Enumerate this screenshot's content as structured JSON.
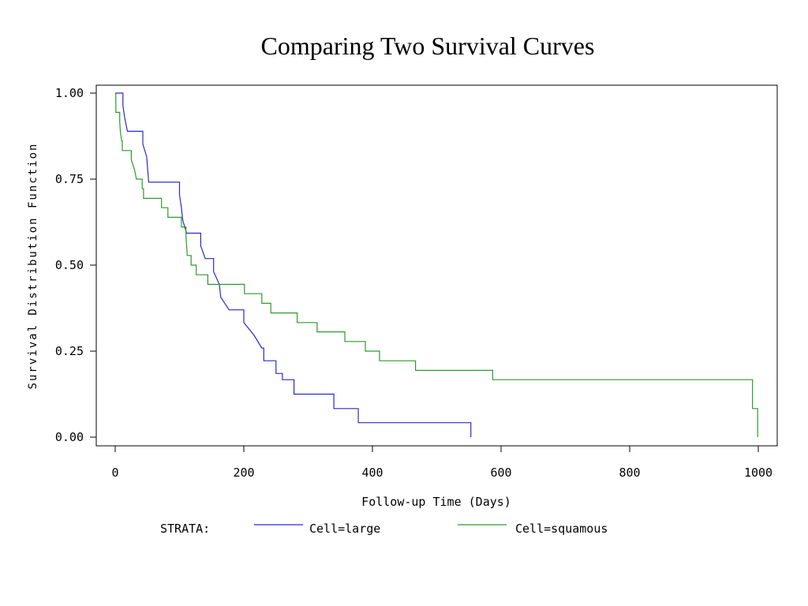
{
  "chart_data": {
    "type": "line",
    "title": "Comparing Two Survival Curves",
    "xlabel": "Follow-up Time (Days)",
    "ylabel": "Survival Distribution Function",
    "xlim": [
      0,
      1000
    ],
    "ylim": [
      0,
      1
    ],
    "x_ticks": [
      "0",
      "200",
      "400",
      "600",
      "800",
      "1000"
    ],
    "y_ticks": [
      "0.00",
      "0.25",
      "0.50",
      "0.75",
      "1.00"
    ],
    "step": true,
    "legend_title": "STRATA:",
    "series": [
      {
        "name": "Cell=large",
        "color": "#2a2ad0",
        "points": [
          [
            0,
            1.0
          ],
          [
            12,
            1.0
          ],
          [
            12,
            0.963
          ],
          [
            15,
            0.926
          ],
          [
            19,
            0.889
          ],
          [
            43,
            0.889
          ],
          [
            43,
            0.852
          ],
          [
            49,
            0.815
          ],
          [
            52,
            0.741
          ],
          [
            100,
            0.741
          ],
          [
            100,
            0.704
          ],
          [
            103,
            0.667
          ],
          [
            105,
            0.63
          ],
          [
            111,
            0.593
          ],
          [
            133,
            0.593
          ],
          [
            133,
            0.556
          ],
          [
            140,
            0.519
          ],
          [
            153,
            0.519
          ],
          [
            153,
            0.481
          ],
          [
            162,
            0.444
          ],
          [
            164,
            0.407
          ],
          [
            177,
            0.37
          ],
          [
            200,
            0.37
          ],
          [
            200,
            0.333
          ],
          [
            216,
            0.296
          ],
          [
            228,
            0.259
          ],
          [
            231,
            0.259
          ],
          [
            231,
            0.222
          ],
          [
            250,
            0.222
          ],
          [
            250,
            0.185
          ],
          [
            260,
            0.185
          ],
          [
            260,
            0.167
          ],
          [
            278,
            0.167
          ],
          [
            278,
            0.125
          ],
          [
            340,
            0.125
          ],
          [
            340,
            0.083
          ],
          [
            378,
            0.083
          ],
          [
            378,
            0.042
          ],
          [
            553,
            0.042
          ],
          [
            553,
            0.0
          ]
        ]
      },
      {
        "name": "Cell=squamous",
        "color": "#2e9a2e",
        "points": [
          [
            0,
            1.0
          ],
          [
            1,
            1.0
          ],
          [
            1,
            0.944
          ],
          [
            7,
            0.944
          ],
          [
            7,
            0.917
          ],
          [
            8,
            0.889
          ],
          [
            10,
            0.861
          ],
          [
            11,
            0.861
          ],
          [
            11,
            0.833
          ],
          [
            15,
            0.833
          ],
          [
            15,
            0.833
          ],
          [
            25,
            0.833
          ],
          [
            25,
            0.806
          ],
          [
            30,
            0.778
          ],
          [
            33,
            0.75
          ],
          [
            42,
            0.75
          ],
          [
            42,
            0.722
          ],
          [
            44,
            0.722
          ],
          [
            44,
            0.694
          ],
          [
            72,
            0.694
          ],
          [
            72,
            0.667
          ],
          [
            82,
            0.667
          ],
          [
            82,
            0.639
          ],
          [
            103,
            0.639
          ],
          [
            103,
            0.611
          ],
          [
            110,
            0.611
          ],
          [
            110,
            0.583
          ],
          [
            111,
            0.556
          ],
          [
            112,
            0.528
          ],
          [
            118,
            0.528
          ],
          [
            118,
            0.5
          ],
          [
            126,
            0.5
          ],
          [
            126,
            0.472
          ],
          [
            144,
            0.472
          ],
          [
            144,
            0.444
          ],
          [
            201,
            0.444
          ],
          [
            201,
            0.417
          ],
          [
            228,
            0.417
          ],
          [
            228,
            0.389
          ],
          [
            242,
            0.389
          ],
          [
            242,
            0.361
          ],
          [
            283,
            0.361
          ],
          [
            283,
            0.333
          ],
          [
            314,
            0.333
          ],
          [
            314,
            0.306
          ],
          [
            357,
            0.306
          ],
          [
            357,
            0.278
          ],
          [
            389,
            0.278
          ],
          [
            389,
            0.25
          ],
          [
            411,
            0.25
          ],
          [
            411,
            0.222
          ],
          [
            467,
            0.222
          ],
          [
            467,
            0.194
          ],
          [
            587,
            0.194
          ],
          [
            587,
            0.167
          ],
          [
            991,
            0.167
          ],
          [
            991,
            0.083
          ],
          [
            999,
            0.083
          ],
          [
            999,
            0.0
          ]
        ]
      }
    ]
  }
}
